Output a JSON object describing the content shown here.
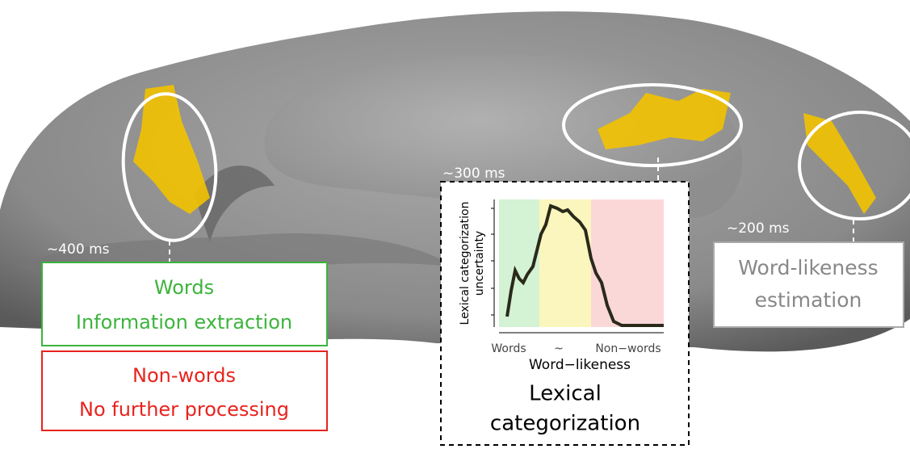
{
  "left": {
    "latency": "~400 ms",
    "words_box": [
      "Words",
      "Information extraction"
    ],
    "nonwords_box": [
      "Non-words",
      "No further processing"
    ]
  },
  "middle": {
    "latency": "~300 ms",
    "inset": {
      "y_label": [
        "Lexical categorization",
        "uncertainty"
      ],
      "x_ticks": [
        "Words",
        "~",
        "Non−words"
      ],
      "x_label": "Word−likeness"
    },
    "caption": [
      "Lexical",
      "categorization"
    ]
  },
  "right": {
    "latency": "~200 ms",
    "box": [
      "Word-likeness",
      "estimation"
    ]
  }
}
